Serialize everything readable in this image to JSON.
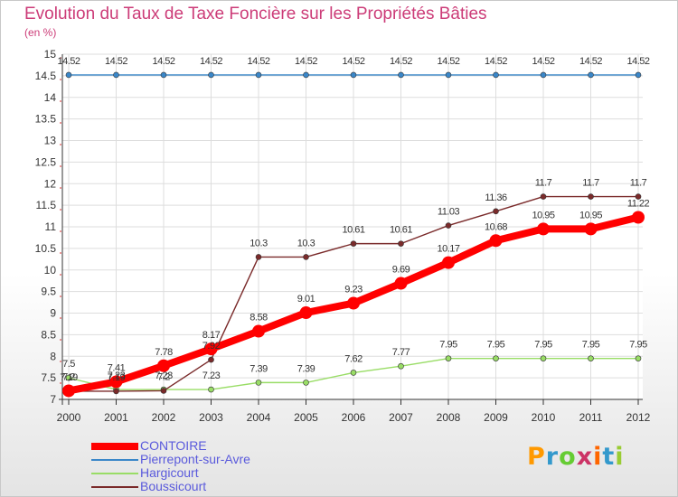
{
  "title": "Evolution du Taux de Taxe Foncière sur les Propriétés Bâties",
  "unit_label": "(en %)",
  "logo": {
    "text": "Proxiti",
    "colors": [
      "#ff9900",
      "#3399cc",
      "#66cc33",
      "#cc3366",
      "#ff6600",
      "#3399cc",
      "#99cc33"
    ]
  },
  "chart_data": {
    "type": "line",
    "title": "Evolution du Taux de Taxe Foncière sur les Propriétés Bâties",
    "ylabel": "(en %)",
    "x": [
      "2000",
      "2001",
      "2002",
      "2003",
      "2004",
      "2005",
      "2006",
      "2007",
      "2008",
      "2009",
      "2010",
      "2011",
      "2012"
    ],
    "ylim": [
      7,
      15
    ],
    "yticks": [
      "7",
      "7.5",
      "8",
      "8.5",
      "9",
      "9.5",
      "10",
      "10.5",
      "11",
      "11.5",
      "12",
      "12.5",
      "13",
      "13.5",
      "14",
      "14.5",
      "15"
    ],
    "grid": true,
    "legend_position": "bottom-left",
    "series": [
      {
        "name": "CONTOIRE",
        "color": "#ff0000",
        "values": [
          7.2,
          7.41,
          7.78,
          8.17,
          8.58,
          9.01,
          9.23,
          9.69,
          10.17,
          10.68,
          10.95,
          10.95,
          11.22
        ],
        "labels": [
          "7.2",
          "7.41",
          "7.78",
          "8.17",
          "8.58",
          "9.01",
          "9.23",
          "9.69",
          "10.17",
          "10.68",
          "10.95",
          "10.95",
          "11.22"
        ]
      },
      {
        "name": "Pierrepont-sur-Avre",
        "color": "#3a87c9",
        "values": [
          14.52,
          14.52,
          14.52,
          14.52,
          14.52,
          14.52,
          14.52,
          14.52,
          14.52,
          14.52,
          14.52,
          14.52,
          14.52
        ],
        "labels": [
          "14.52",
          "14.52",
          "14.52",
          "14.52",
          "14.52",
          "14.52",
          "14.52",
          "14.52",
          "14.52",
          "14.52",
          "14.52",
          "14.52",
          "14.52"
        ]
      },
      {
        "name": "Hargicourt",
        "color": "#99dd66",
        "values": [
          7.5,
          7.23,
          7.23,
          7.23,
          7.39,
          7.39,
          7.62,
          7.77,
          7.95,
          7.95,
          7.95,
          7.95,
          7.95
        ],
        "labels": [
          "7.5",
          "7.23",
          "7.23",
          "7.23",
          "7.39",
          "7.39",
          "7.62",
          "7.77",
          "7.95",
          "7.95",
          "7.95",
          "7.95",
          "7.95"
        ]
      },
      {
        "name": "Boussicourt",
        "color": "#7a2a2a",
        "values": [
          7.19,
          7.19,
          7.2,
          7.92,
          10.3,
          10.3,
          10.61,
          10.61,
          11.03,
          11.36,
          11.7,
          11.7,
          11.7
        ],
        "labels": [
          "7.19",
          "7.19",
          "7.2",
          "7.92",
          "10.3",
          "10.3",
          "10.61",
          "10.61",
          "11.03",
          "11.36",
          "11.7",
          "11.7",
          "11.7"
        ]
      }
    ]
  }
}
